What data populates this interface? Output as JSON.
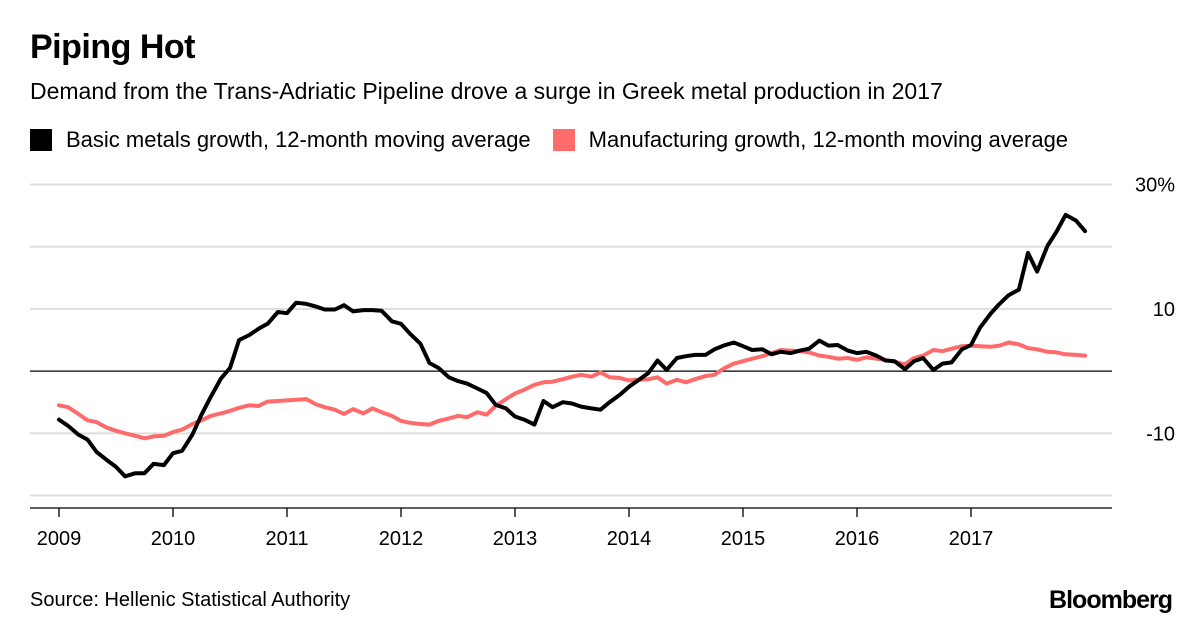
{
  "title": "Piping Hot",
  "subtitle": "Demand from the Trans-Adriatic Pipeline drove a surge in Greek metal production in 2017",
  "source": "Source: Hellenic Statistical Authority",
  "brand": "Bloomberg",
  "colors": {
    "metals": "#000000",
    "manufacturing": "#ff6b6b",
    "grid": "#dddddd",
    "zero": "#000000"
  },
  "chart_data": {
    "type": "line",
    "title": "Piping Hot",
    "xlabel": "",
    "ylabel": "",
    "xlim": [
      2009,
      2018.1
    ],
    "ylim": [
      -22,
      32
    ],
    "x_ticks": [
      {
        "value": 2009,
        "label": "2009"
      },
      {
        "value": 2010,
        "label": "2010"
      },
      {
        "value": 2011,
        "label": "2011"
      },
      {
        "value": 2012,
        "label": "2012"
      },
      {
        "value": 2013,
        "label": "2013"
      },
      {
        "value": 2014,
        "label": "2014"
      },
      {
        "value": 2015,
        "label": "2015"
      },
      {
        "value": 2016,
        "label": "2016"
      },
      {
        "value": 2017,
        "label": "2017"
      }
    ],
    "y_ticks": [
      {
        "value": 30,
        "label": "30%"
      },
      {
        "value": 10,
        "label": "10"
      },
      {
        "value": -10,
        "label": "-10"
      }
    ],
    "y_gridlines": [
      30,
      20,
      10,
      -10,
      -20
    ],
    "zero_line": 0,
    "legend_position": "top-left",
    "series": [
      {
        "name": "Basic metals growth, 12-month moving average",
        "color": "#000000",
        "points": [
          [
            2009.0,
            -7.8
          ],
          [
            2009.08,
            -8.8
          ],
          [
            2009.17,
            -10.2
          ],
          [
            2009.25,
            -11.0
          ],
          [
            2009.33,
            -13.0
          ],
          [
            2009.42,
            -14.3
          ],
          [
            2009.5,
            -15.4
          ],
          [
            2009.58,
            -16.9
          ],
          [
            2009.67,
            -16.4
          ],
          [
            2009.75,
            -16.4
          ],
          [
            2009.83,
            -14.9
          ],
          [
            2009.92,
            -15.1
          ],
          [
            2010.0,
            -13.2
          ],
          [
            2010.08,
            -12.8
          ],
          [
            2010.17,
            -10.2
          ],
          [
            2010.25,
            -7.0
          ],
          [
            2010.33,
            -4.2
          ],
          [
            2010.42,
            -1.2
          ],
          [
            2010.5,
            0.5
          ],
          [
            2010.58,
            5.0
          ],
          [
            2010.67,
            5.8
          ],
          [
            2010.75,
            6.8
          ],
          [
            2010.83,
            7.6
          ],
          [
            2010.92,
            9.5
          ],
          [
            2011.0,
            9.3
          ],
          [
            2011.08,
            11.0
          ],
          [
            2011.17,
            10.8
          ],
          [
            2011.25,
            10.4
          ],
          [
            2011.33,
            9.9
          ],
          [
            2011.42,
            9.9
          ],
          [
            2011.5,
            10.6
          ],
          [
            2011.58,
            9.6
          ],
          [
            2011.67,
            9.8
          ],
          [
            2011.75,
            9.8
          ],
          [
            2011.83,
            9.7
          ],
          [
            2011.92,
            8.0
          ],
          [
            2012.0,
            7.6
          ],
          [
            2012.08,
            6.0
          ],
          [
            2012.17,
            4.4
          ],
          [
            2012.25,
            1.3
          ],
          [
            2012.33,
            0.5
          ],
          [
            2012.42,
            -1.0
          ],
          [
            2012.5,
            -1.6
          ],
          [
            2012.58,
            -2.0
          ],
          [
            2012.67,
            -2.8
          ],
          [
            2012.75,
            -3.5
          ],
          [
            2012.83,
            -5.4
          ],
          [
            2012.92,
            -6.0
          ],
          [
            2013.0,
            -7.3
          ],
          [
            2013.08,
            -7.8
          ],
          [
            2013.17,
            -8.6
          ],
          [
            2013.25,
            -4.8
          ],
          [
            2013.33,
            -5.8
          ],
          [
            2013.42,
            -5.0
          ],
          [
            2013.5,
            -5.2
          ],
          [
            2013.58,
            -5.7
          ],
          [
            2013.67,
            -6.0
          ],
          [
            2013.75,
            -6.2
          ],
          [
            2013.83,
            -5.0
          ],
          [
            2013.92,
            -3.8
          ],
          [
            2014.0,
            -2.5
          ],
          [
            2014.08,
            -1.5
          ],
          [
            2014.17,
            -0.3
          ],
          [
            2014.25,
            1.7
          ],
          [
            2014.33,
            0.2
          ],
          [
            2014.42,
            2.1
          ],
          [
            2014.5,
            2.4
          ],
          [
            2014.58,
            2.6
          ],
          [
            2014.67,
            2.6
          ],
          [
            2014.75,
            3.5
          ],
          [
            2014.83,
            4.1
          ],
          [
            2014.92,
            4.6
          ],
          [
            2015.0,
            4.0
          ],
          [
            2015.08,
            3.4
          ],
          [
            2015.17,
            3.5
          ],
          [
            2015.25,
            2.7
          ],
          [
            2015.33,
            3.1
          ],
          [
            2015.42,
            2.9
          ],
          [
            2015.5,
            3.3
          ],
          [
            2015.58,
            3.6
          ],
          [
            2015.67,
            4.9
          ],
          [
            2015.75,
            4.1
          ],
          [
            2015.83,
            4.2
          ],
          [
            2015.92,
            3.3
          ],
          [
            2016.0,
            2.9
          ],
          [
            2016.08,
            3.1
          ],
          [
            2016.17,
            2.5
          ],
          [
            2016.25,
            1.7
          ],
          [
            2016.33,
            1.6
          ],
          [
            2016.42,
            0.3
          ],
          [
            2016.5,
            1.6
          ],
          [
            2016.58,
            2.1
          ],
          [
            2016.67,
            0.2
          ],
          [
            2016.75,
            1.2
          ],
          [
            2016.83,
            1.4
          ],
          [
            2016.92,
            3.5
          ],
          [
            2017.0,
            4.2
          ],
          [
            2017.08,
            7.0
          ],
          [
            2017.17,
            9.2
          ],
          [
            2017.25,
            10.8
          ],
          [
            2017.33,
            12.2
          ],
          [
            2017.42,
            13.1
          ],
          [
            2017.5,
            19.0
          ],
          [
            2017.58,
            16.0
          ],
          [
            2017.67,
            20.1
          ],
          [
            2017.75,
            22.4
          ],
          [
            2017.83,
            25.1
          ],
          [
            2017.92,
            24.2
          ],
          [
            2018.0,
            22.5
          ]
        ]
      },
      {
        "name": "Manufacturing growth, 12-month moving average",
        "color": "#ff6b6b",
        "points": [
          [
            2009.0,
            -5.5
          ],
          [
            2009.08,
            -5.8
          ],
          [
            2009.17,
            -6.9
          ],
          [
            2009.25,
            -7.9
          ],
          [
            2009.33,
            -8.2
          ],
          [
            2009.42,
            -9.1
          ],
          [
            2009.5,
            -9.6
          ],
          [
            2009.58,
            -10.0
          ],
          [
            2009.67,
            -10.4
          ],
          [
            2009.75,
            -10.8
          ],
          [
            2009.83,
            -10.5
          ],
          [
            2009.92,
            -10.4
          ],
          [
            2010.0,
            -9.8
          ],
          [
            2010.08,
            -9.4
          ],
          [
            2010.17,
            -8.5
          ],
          [
            2010.25,
            -7.9
          ],
          [
            2010.33,
            -7.2
          ],
          [
            2010.42,
            -6.8
          ],
          [
            2010.5,
            -6.4
          ],
          [
            2010.58,
            -5.9
          ],
          [
            2010.67,
            -5.5
          ],
          [
            2010.75,
            -5.6
          ],
          [
            2010.83,
            -4.9
          ],
          [
            2010.92,
            -4.8
          ],
          [
            2011.0,
            -4.7
          ],
          [
            2011.08,
            -4.6
          ],
          [
            2011.17,
            -4.5
          ],
          [
            2011.25,
            -5.3
          ],
          [
            2011.33,
            -5.8
          ],
          [
            2011.42,
            -6.2
          ],
          [
            2011.5,
            -6.9
          ],
          [
            2011.58,
            -6.1
          ],
          [
            2011.67,
            -6.8
          ],
          [
            2011.75,
            -6.0
          ],
          [
            2011.83,
            -6.6
          ],
          [
            2011.92,
            -7.2
          ],
          [
            2012.0,
            -8.0
          ],
          [
            2012.08,
            -8.3
          ],
          [
            2012.17,
            -8.5
          ],
          [
            2012.25,
            -8.6
          ],
          [
            2012.33,
            -8.0
          ],
          [
            2012.42,
            -7.6
          ],
          [
            2012.5,
            -7.2
          ],
          [
            2012.58,
            -7.4
          ],
          [
            2012.67,
            -6.6
          ],
          [
            2012.75,
            -7.0
          ],
          [
            2012.83,
            -5.6
          ],
          [
            2012.92,
            -4.5
          ],
          [
            2013.0,
            -3.6
          ],
          [
            2013.08,
            -3.0
          ],
          [
            2013.17,
            -2.2
          ],
          [
            2013.25,
            -1.8
          ],
          [
            2013.33,
            -1.7
          ],
          [
            2013.42,
            -1.3
          ],
          [
            2013.5,
            -0.9
          ],
          [
            2013.58,
            -0.6
          ],
          [
            2013.67,
            -0.9
          ],
          [
            2013.75,
            -0.2
          ],
          [
            2013.83,
            -1.0
          ],
          [
            2013.92,
            -1.1
          ],
          [
            2014.0,
            -1.5
          ],
          [
            2014.08,
            -1.4
          ],
          [
            2014.17,
            -1.3
          ],
          [
            2014.25,
            -1.0
          ],
          [
            2014.33,
            -2.0
          ],
          [
            2014.42,
            -1.4
          ],
          [
            2014.5,
            -1.8
          ],
          [
            2014.58,
            -1.3
          ],
          [
            2014.67,
            -0.8
          ],
          [
            2014.75,
            -0.6
          ],
          [
            2014.83,
            0.4
          ],
          [
            2014.92,
            1.2
          ],
          [
            2015.0,
            1.6
          ],
          [
            2015.08,
            2.0
          ],
          [
            2015.17,
            2.4
          ],
          [
            2015.25,
            2.9
          ],
          [
            2015.33,
            3.4
          ],
          [
            2015.42,
            3.3
          ],
          [
            2015.5,
            3.2
          ],
          [
            2015.58,
            3.0
          ],
          [
            2015.67,
            2.5
          ],
          [
            2015.75,
            2.3
          ],
          [
            2015.83,
            2.0
          ],
          [
            2015.92,
            2.1
          ],
          [
            2016.0,
            1.8
          ],
          [
            2016.08,
            2.2
          ],
          [
            2016.17,
            2.0
          ],
          [
            2016.25,
            1.8
          ],
          [
            2016.33,
            1.5
          ],
          [
            2016.42,
            1.1
          ],
          [
            2016.5,
            2.1
          ],
          [
            2016.58,
            2.5
          ],
          [
            2016.67,
            3.4
          ],
          [
            2016.75,
            3.2
          ],
          [
            2016.83,
            3.6
          ],
          [
            2016.92,
            4.0
          ],
          [
            2017.0,
            4.1
          ],
          [
            2017.08,
            4.0
          ],
          [
            2017.17,
            3.9
          ],
          [
            2017.25,
            4.1
          ],
          [
            2017.33,
            4.6
          ],
          [
            2017.42,
            4.3
          ],
          [
            2017.5,
            3.7
          ],
          [
            2017.58,
            3.5
          ],
          [
            2017.67,
            3.1
          ],
          [
            2017.75,
            3.0
          ],
          [
            2017.83,
            2.7
          ],
          [
            2017.92,
            2.6
          ],
          [
            2018.0,
            2.5
          ]
        ]
      }
    ]
  }
}
